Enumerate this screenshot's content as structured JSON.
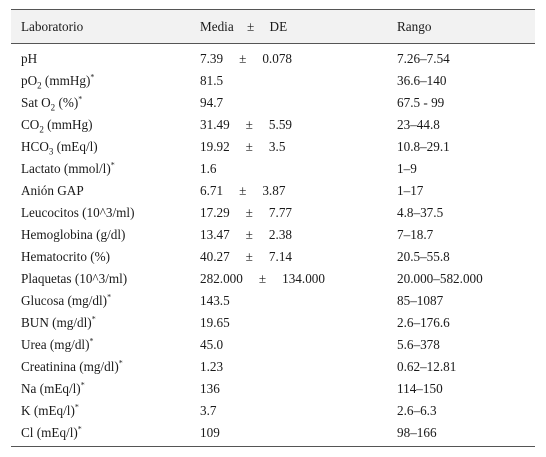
{
  "header": {
    "lab": "Laboratorio",
    "mean": "Media",
    "pm": "±",
    "sd": "DE",
    "range": "Rango"
  },
  "rows": [
    {
      "name": "pH",
      "sub": "",
      "rest": "",
      "sup": "",
      "mean": "7.39",
      "pm": "±",
      "sd": "0.078",
      "range": "7.26–7.54"
    },
    {
      "name": "pO",
      "sub": "2",
      "rest": " (mmHg)",
      "sup": "*",
      "mean": "81.5",
      "pm": "",
      "sd": "",
      "range": "36.6–140"
    },
    {
      "name": "Sat O",
      "sub": "2",
      "rest": " (%)",
      "sup": "*",
      "mean": "94.7",
      "pm": "",
      "sd": "",
      "range": "67.5 - 99"
    },
    {
      "name": "CO",
      "sub": "2",
      "rest": " (mmHg)",
      "sup": "",
      "mean": "31.49",
      "pm": "±",
      "sd": "5.59",
      "range": "23–44.8"
    },
    {
      "name": "HCO",
      "sub": "3",
      "rest": " (mEq/l)",
      "sup": "",
      "mean": "19.92",
      "pm": "±",
      "sd": "3.5",
      "range": "10.8–29.1"
    },
    {
      "name": "Lactato (mmol/l)",
      "sub": "",
      "rest": "",
      "sup": "*",
      "mean": "1.6",
      "pm": "",
      "sd": "",
      "range": "1–9"
    },
    {
      "name": "Anión GAP",
      "sub": "",
      "rest": "",
      "sup": "",
      "mean": "6.71",
      "pm": "±",
      "sd": "3.87",
      "range": "1–17"
    },
    {
      "name": "Leucocitos (10^3/ml)",
      "sub": "",
      "rest": "",
      "sup": "",
      "mean": "17.29",
      "pm": "±",
      "sd": "7.77",
      "range": "4.8–37.5"
    },
    {
      "name": "Hemoglobina (g/dl)",
      "sub": "",
      "rest": "",
      "sup": "",
      "mean": "13.47",
      "pm": "±",
      "sd": "2.38",
      "range": "7–18.7"
    },
    {
      "name": "Hematocrito (%)",
      "sub": "",
      "rest": "",
      "sup": "",
      "mean": "40.27",
      "pm": "±",
      "sd": "7.14",
      "range": "20.5–55.8"
    },
    {
      "name": "Plaquetas (10^3/ml)",
      "sub": "",
      "rest": "",
      "sup": "",
      "mean": "282.000",
      "pm": "±",
      "sd": "134.000",
      "range": "20.000–582.000"
    },
    {
      "name": "Glucosa (mg/dl)",
      "sub": "",
      "rest": "",
      "sup": "*",
      "mean": "143.5",
      "pm": "",
      "sd": "",
      "range": "85–1087"
    },
    {
      "name": "BUN (mg/dl)",
      "sub": "",
      "rest": "",
      "sup": "*",
      "mean": "19.65",
      "pm": "",
      "sd": "",
      "range": "2.6–176.6"
    },
    {
      "name": "Urea (mg/dl)",
      "sub": "",
      "rest": "",
      "sup": "*",
      "mean": "45.0",
      "pm": "",
      "sd": "",
      "range": "5.6–378"
    },
    {
      "name": "Creatinina (mg/dl)",
      "sub": "",
      "rest": "",
      "sup": "*",
      "mean": "1.23",
      "pm": "",
      "sd": "",
      "range": "0.62–12.81"
    },
    {
      "name": "Na (mEq/l)",
      "sub": "",
      "rest": "",
      "sup": "*",
      "mean": "136",
      "pm": "",
      "sd": "",
      "range": "114–150"
    },
    {
      "name": "K (mEq/l)",
      "sub": "",
      "rest": "",
      "sup": "*",
      "mean": "3.7",
      "pm": "",
      "sd": "",
      "range": "2.6–6.3"
    },
    {
      "name": "Cl (mEq/l)",
      "sub": "",
      "rest": "",
      "sup": "*",
      "mean": "109",
      "pm": "",
      "sd": "",
      "range": "98–166"
    }
  ]
}
